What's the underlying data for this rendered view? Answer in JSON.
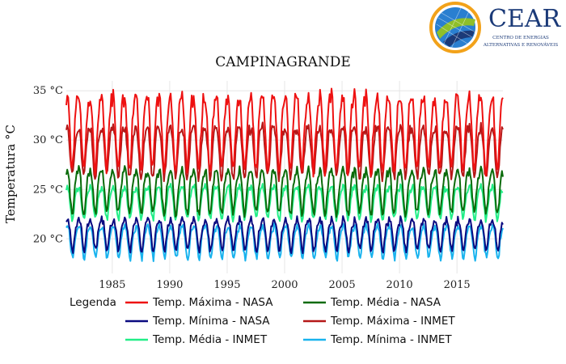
{
  "logo": {
    "name": "CEAR",
    "subtitle_line1": "CENTRO DE ENERGIAS",
    "subtitle_line2": "ALTERNATIVAS E RENOVÁVEIS",
    "colors": {
      "navy": "#1b3a78",
      "blue": "#2a7fd0",
      "green": "#8fbf2a",
      "orange": "#f2a21a"
    }
  },
  "chart_data": {
    "type": "line",
    "title": "CAMPINAGRANDE",
    "ylabel": "Temperatura °C",
    "xlabel": "",
    "xlim": [
      1981,
      2019
    ],
    "ylim": [
      16.5,
      36
    ],
    "x_ticks": [
      1985,
      1990,
      1995,
      2000,
      2005,
      2010,
      2015
    ],
    "y_ticks": [
      {
        "value": 20,
        "label": "20 °C"
      },
      {
        "value": 25,
        "label": "25 °C"
      },
      {
        "value": 30,
        "label": "30 °C"
      },
      {
        "value": 35,
        "label": "35 °C"
      }
    ],
    "grid": true,
    "legend_title": "Legenda",
    "legend_position": "bottom",
    "x_units": "year",
    "series": [
      {
        "name": "Temp. Máxima - NASA",
        "color": "#ee1111",
        "x_start": 1981,
        "x_end": 2019,
        "approx_seasonal_min": 26.5,
        "approx_seasonal_max": 34.5,
        "monthly_pattern": [
          34.0,
          34.5,
          33.8,
          32.0,
          30.0,
          28.0,
          27.0,
          27.5,
          29.5,
          31.5,
          33.0,
          34.0
        ]
      },
      {
        "name": "Temp. Média - NASA",
        "color": "#0a6b0a",
        "x_start": 1981,
        "x_end": 2019,
        "approx_seasonal_min": 22.5,
        "approx_seasonal_max": 27.0,
        "monthly_pattern": [
          26.6,
          27.0,
          26.8,
          26.0,
          24.5,
          23.2,
          22.6,
          22.8,
          24.0,
          25.2,
          26.0,
          26.5
        ]
      },
      {
        "name": "Temp. Mínima - NASA",
        "color": "#0a0a80",
        "x_start": 1981,
        "x_end": 2019,
        "approx_seasonal_min": 18.5,
        "approx_seasonal_max": 22.0,
        "monthly_pattern": [
          21.6,
          22.0,
          21.8,
          21.5,
          20.8,
          19.8,
          19.0,
          18.8,
          19.5,
          20.5,
          21.2,
          21.5
        ]
      },
      {
        "name": "Temp. Máxima - INMET",
        "color": "#b51818",
        "x_start": 1981,
        "x_end": 2019,
        "approx_seasonal_min": 26.0,
        "approx_seasonal_max": 31.5,
        "monthly_pattern": [
          31.0,
          31.3,
          31.0,
          30.0,
          28.5,
          27.0,
          26.3,
          26.5,
          27.8,
          29.3,
          30.5,
          31.0
        ]
      },
      {
        "name": "Temp. Média - INMET",
        "color": "#22ee88",
        "x_start": 1981,
        "x_end": 2019,
        "approx_seasonal_min": 22.0,
        "approx_seasonal_max": 25.5,
        "monthly_pattern": [
          25.0,
          25.3,
          25.2,
          24.6,
          23.6,
          22.6,
          22.0,
          22.1,
          22.9,
          23.9,
          24.6,
          25.0
        ]
      },
      {
        "name": "Temp. Mínima - INMET",
        "color": "#19b3ee",
        "x_start": 1981,
        "x_end": 2019,
        "approx_seasonal_min": 18.0,
        "approx_seasonal_max": 21.3,
        "monthly_pattern": [
          21.0,
          21.3,
          21.2,
          20.8,
          20.0,
          19.0,
          18.3,
          18.0,
          18.6,
          19.6,
          20.4,
          20.8
        ]
      }
    ]
  }
}
